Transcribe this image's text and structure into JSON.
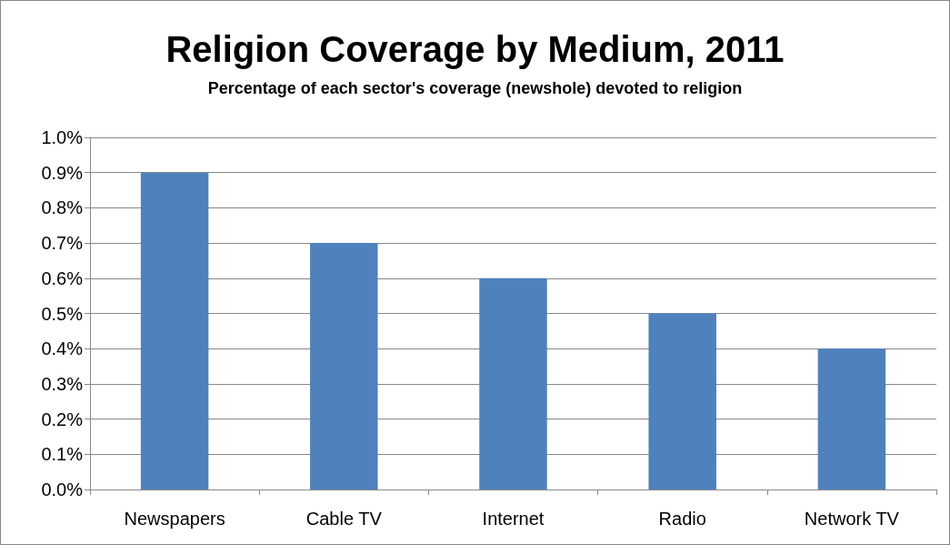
{
  "chart_data": {
    "type": "bar",
    "title": "Religion Coverage by Medium, 2011",
    "subtitle": "Percentage of each sector's coverage (newshole) devoted to religion",
    "categories": [
      "Newspapers",
      "Cable TV",
      "Internet",
      "Radio",
      "Network TV"
    ],
    "values": [
      0.9,
      0.7,
      0.6,
      0.5,
      0.4
    ],
    "color": "#4f81bd",
    "ylim": [
      0,
      1
    ],
    "yticks": [
      {
        "value": 0,
        "label": "0.0%"
      },
      {
        "value": 0.1,
        "label": "0.1%"
      },
      {
        "value": 0.2,
        "label": "0.2%"
      },
      {
        "value": 0.3,
        "label": "0.3%"
      },
      {
        "value": 0.4,
        "label": "0.4%"
      },
      {
        "value": 0.5,
        "label": "0.5%"
      },
      {
        "value": 0.6,
        "label": "0.6%"
      },
      {
        "value": 0.7,
        "label": "0.7%"
      },
      {
        "value": 0.8,
        "label": "0.8%"
      },
      {
        "value": 0.9,
        "label": "0.9%"
      },
      {
        "value": 1,
        "label": "1.0%"
      }
    ],
    "grid": "y"
  }
}
